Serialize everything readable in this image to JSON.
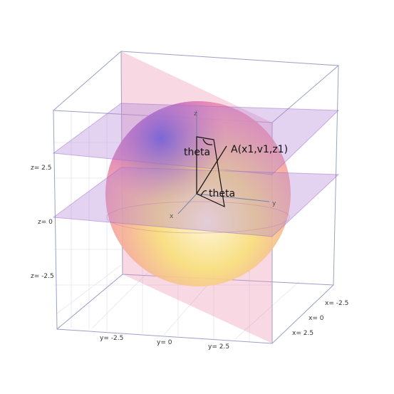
{
  "annotations": {
    "angle_top": "theta",
    "point": "A(x1,v1,z1)",
    "angle_bottom": "theta"
  },
  "axes": {
    "z": "z",
    "y": "y",
    "x": "x"
  },
  "z_tick_labels": [
    "z= 2.5",
    "z= 0",
    "z= -2.5"
  ],
  "y_tick_labels": [
    "y= -2.5",
    "y= 0",
    "y= 2.5"
  ],
  "x_tick_labels": [
    "x= -2.5",
    "x= 0",
    "x= 2.5"
  ]
}
